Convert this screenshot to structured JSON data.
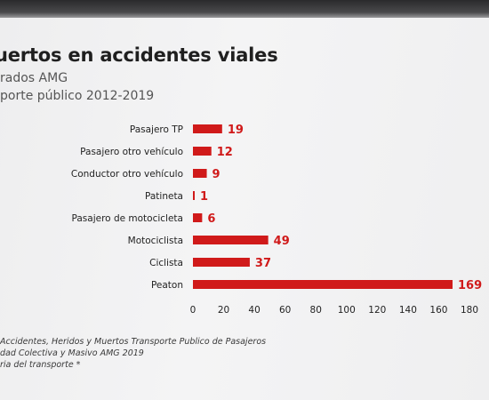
{
  "header": {
    "title": "uertos en accidentes viales",
    "subtitle_line1": "rados AMG",
    "subtitle_line2": "porte público 2012-2019"
  },
  "footer": {
    "line1": "Accidentes, Heridos y Muertos Transporte Publico de Pasajeros",
    "line2": "dad Colectiva y Masivo AMG 2019",
    "line3": "ria del transporte *"
  },
  "colors": {
    "bar": "#d01a1a",
    "value_label": "#d01a1a",
    "text": "#222222"
  },
  "chart_data": {
    "type": "bar",
    "orientation": "horizontal",
    "title": "uertos en accidentes viales",
    "categories": [
      "Pasajero TP",
      "Pasajero otro vehículo",
      "Conductor otro vehículo",
      "Patineta",
      "Pasajero de motocicleta",
      "Motociclista",
      "Ciclista",
      "Peaton"
    ],
    "values": [
      19,
      12,
      9,
      1,
      6,
      49,
      37,
      169
    ],
    "xlim": [
      0,
      180
    ],
    "xticks": [
      0,
      20,
      40,
      60,
      80,
      100,
      120,
      140,
      160,
      180
    ],
    "xlabel": "",
    "ylabel": "",
    "grid": false,
    "legend": "none",
    "data_labels": true
  }
}
